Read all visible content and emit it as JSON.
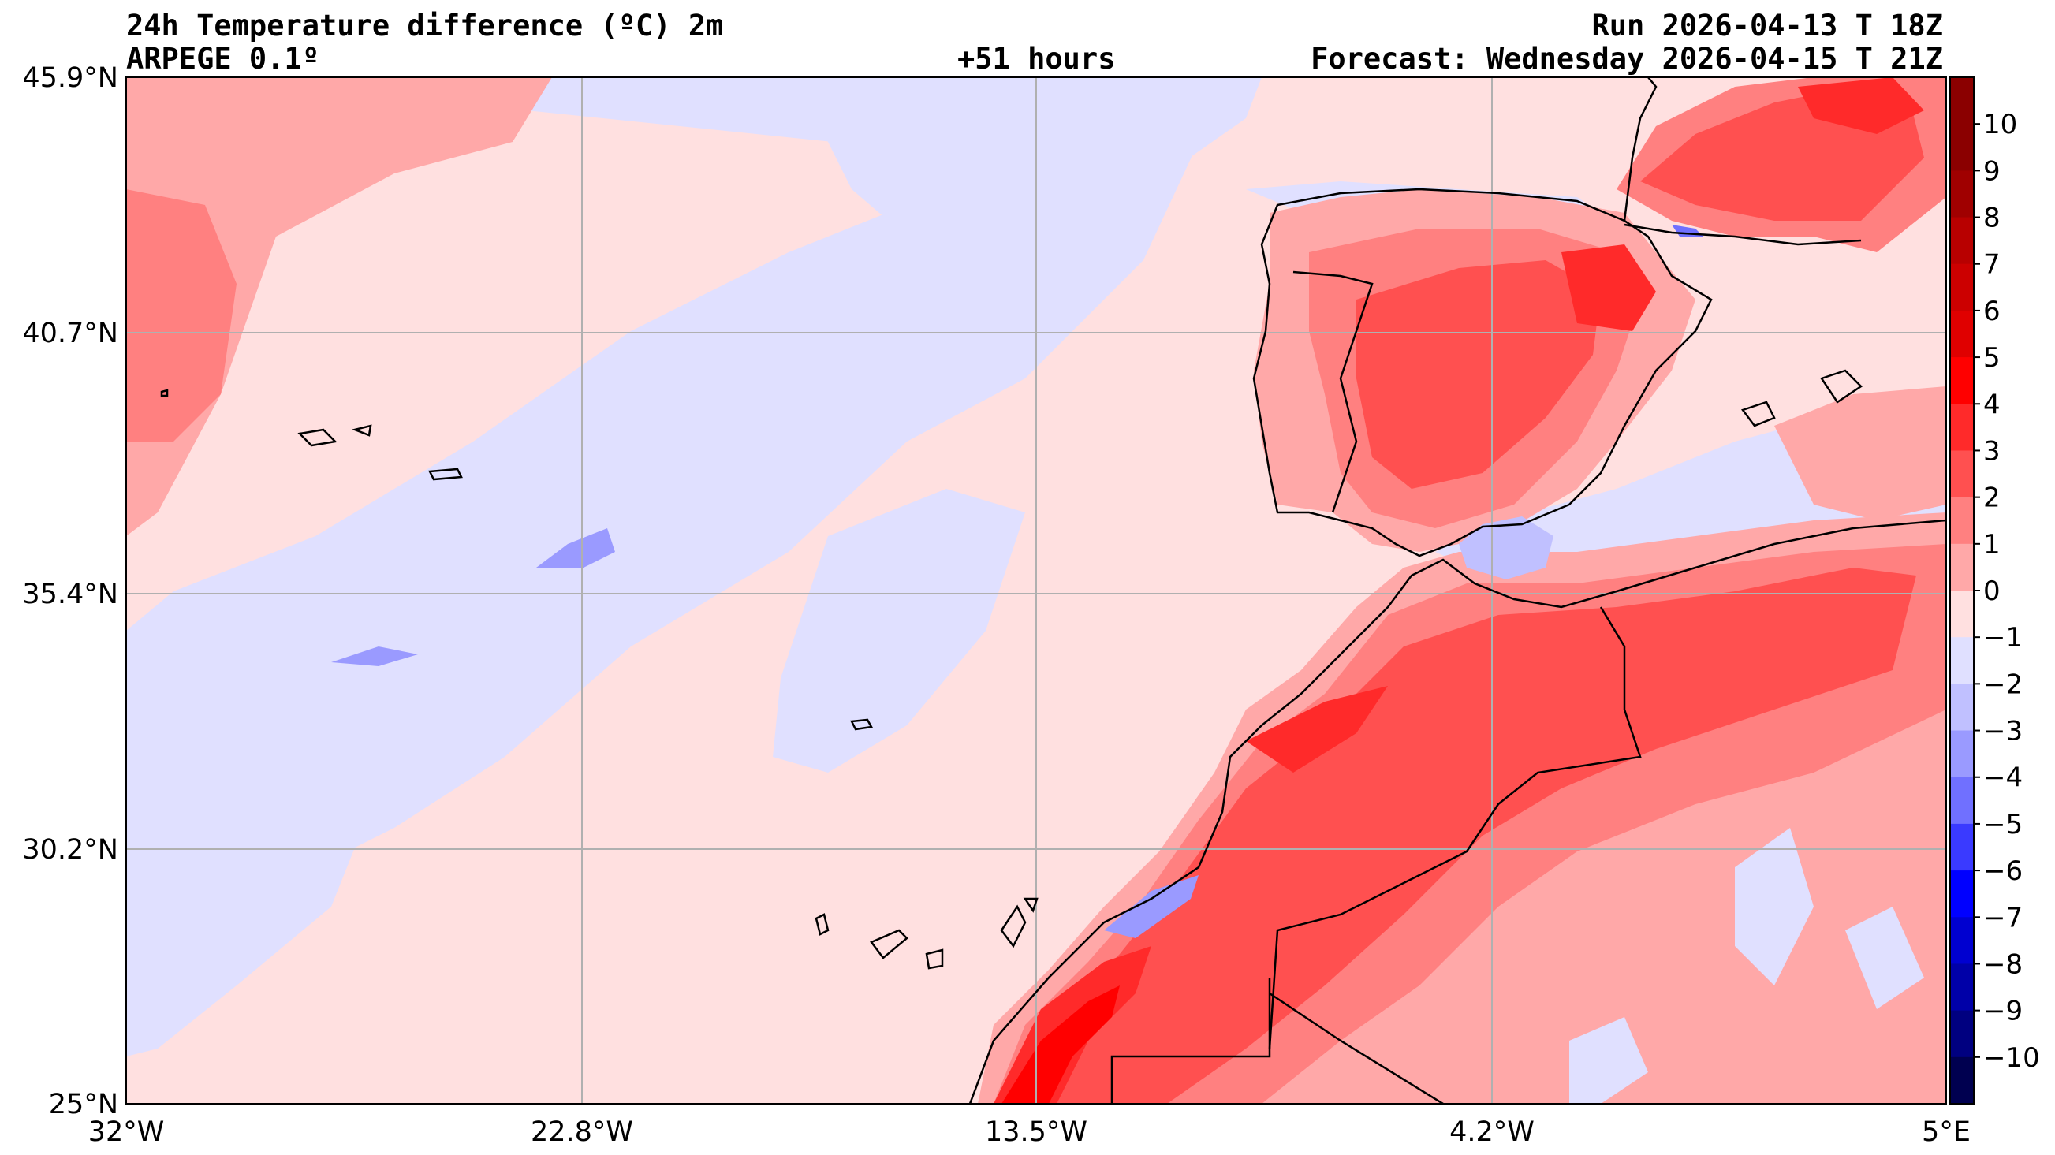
{
  "header": {
    "title_line1": "24h Temperature difference (ºC) 2m",
    "title_line2": "ARPEGE 0.1º",
    "center_label": "+51 hours",
    "run_label": "Run 2026-04-13 T 18Z",
    "forecast_label": "Forecast: Wednesday 2026-04-15 T 21Z"
  },
  "axes": {
    "lat_ticks": [
      "45.9°N",
      "40.7°N",
      "35.4°N",
      "30.2°N",
      "25°N"
    ],
    "lon_ticks": [
      "32°W",
      "22.8°W",
      "13.5°W",
      "4.2°W",
      "5°E"
    ]
  },
  "colorbar": {
    "labels": [
      "10",
      "9",
      "8",
      "7",
      "6",
      "5",
      "4",
      "3",
      "2",
      "1",
      "0",
      "−1",
      "−2",
      "−3",
      "−4",
      "−5",
      "−6",
      "−7",
      "−8",
      "−9",
      "−10"
    ],
    "colors": [
      "#8b0000",
      "#a00000",
      "#b80000",
      "#cc0000",
      "#e00000",
      "#ff0000",
      "#ff2a2a",
      "#ff5050",
      "#ff8080",
      "#ffa8a8",
      "#ffe0e0",
      "#e0e0ff",
      "#c0c0ff",
      "#9a9aff",
      "#7070ff",
      "#3a3aff",
      "#0000ff",
      "#0000d0",
      "#0000a8",
      "#000080",
      "#000050"
    ]
  },
  "palette": {
    "ocean_pos": "#ffe0e0",
    "ocean_neg": "#e0e0ff",
    "warm_1": "#ffa8a8",
    "warm_2": "#ff8080",
    "warm_3": "#ff5050",
    "warm_4": "#ff2a2a",
    "warm_5": "#ff0000",
    "cool_1": "#c0c0ff",
    "cool_2": "#9a9aff",
    "cool_3": "#7070ff",
    "grid": "#b0b0b0",
    "coast": "#000000"
  }
}
